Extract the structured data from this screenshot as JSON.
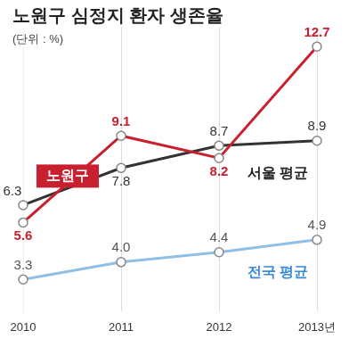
{
  "chart_data": {
    "type": "line",
    "title": "노원구 심정지 환자 생존율",
    "subtitle": "(단위 : %)",
    "categories": [
      "2010",
      "2011",
      "2012",
      "2013년"
    ],
    "series": [
      {
        "name": "노원구",
        "color": "#c8202f",
        "values": [
          5.6,
          9.1,
          8.2,
          12.7
        ],
        "value_labels": [
          "5.6",
          "9.1",
          "8.2",
          "12.7"
        ]
      },
      {
        "name": "서울 평균",
        "color": "#333333",
        "values": [
          6.3,
          7.8,
          8.7,
          8.9
        ],
        "value_labels": [
          "6.3",
          "7.8",
          "8.7",
          "8.9"
        ]
      },
      {
        "name": "전국 평균",
        "color": "#8fbfe6",
        "values": [
          3.3,
          4.0,
          4.4,
          4.9
        ],
        "value_labels": [
          "3.3",
          "4.0",
          "4.4",
          "4.9"
        ]
      }
    ],
    "ylim": [
      2,
      13.5
    ],
    "yticks": [],
    "grid": "x",
    "marker": "circle",
    "data_labels": true,
    "tick_labels": "x"
  }
}
